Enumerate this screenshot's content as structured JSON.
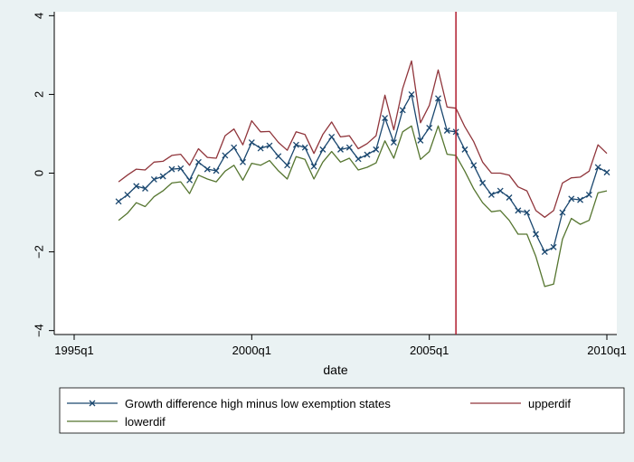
{
  "chart_data": {
    "type": "line",
    "xlabel": "date",
    "ylabel": "",
    "x_tick_labels": [
      "1995q1",
      "2000q1",
      "2005q1",
      "2010q1"
    ],
    "x_ticks": [
      "1995q1",
      "2000q1",
      "2005q1",
      "2010q1"
    ],
    "y_ticks": [
      -4,
      -2,
      0,
      2,
      4
    ],
    "y_tick_labels": [
      "−4",
      "−2",
      "0",
      "2",
      "4"
    ],
    "xlim": [
      "1995q1",
      "2010q1"
    ],
    "ylim": [
      -4.1,
      4.1
    ],
    "grid": false,
    "legend_position": "bottom",
    "vertical_line": {
      "x": "2005q4",
      "color": "#b01c2e"
    },
    "series": [
      {
        "name": "Growth difference high minus low exemption states",
        "color": "#1a476f",
        "marker": "x",
        "x": [
          "1996q2",
          "1996q3",
          "1996q4",
          "1997q1",
          "1997q2",
          "1997q3",
          "1997q4",
          "1998q1",
          "1998q2",
          "1998q3",
          "1998q4",
          "1999q1",
          "1999q2",
          "1999q3",
          "1999q4",
          "2000q1",
          "2000q2",
          "2000q3",
          "2000q4",
          "2001q1",
          "2001q2",
          "2001q3",
          "2001q4",
          "2002q1",
          "2002q2",
          "2002q3",
          "2002q4",
          "2003q1",
          "2003q2",
          "2003q3",
          "2003q4",
          "2004q1",
          "2004q2",
          "2004q3",
          "2004q4",
          "2005q1",
          "2005q2",
          "2005q3",
          "2005q4",
          "2006q1",
          "2006q2",
          "2006q3",
          "2006q4",
          "2007q1",
          "2007q2",
          "2007q3",
          "2007q4",
          "2008q1",
          "2008q2",
          "2008q3",
          "2008q4",
          "2009q1",
          "2009q2",
          "2009q3",
          "2009q4",
          "2010q1"
        ],
        "values": [
          -0.72,
          -0.55,
          -0.33,
          -0.39,
          -0.16,
          -0.08,
          0.1,
          0.12,
          -0.18,
          0.28,
          0.1,
          0.06,
          0.45,
          0.65,
          0.28,
          0.78,
          0.63,
          0.7,
          0.43,
          0.2,
          0.72,
          0.65,
          0.17,
          0.6,
          0.92,
          0.6,
          0.65,
          0.36,
          0.47,
          0.6,
          1.4,
          0.78,
          1.6,
          2.0,
          0.83,
          1.15,
          1.9,
          1.08,
          1.05,
          0.6,
          0.2,
          -0.25,
          -0.55,
          -0.45,
          -0.62,
          -0.95,
          -1.0,
          -1.55,
          -2.0,
          -1.88,
          -1.0,
          -0.65,
          -0.68,
          -0.55,
          0.15,
          0.02
        ]
      },
      {
        "name": "upperdif",
        "color": "#90353b",
        "marker": "none",
        "x": [
          "1996q2",
          "1996q3",
          "1996q4",
          "1997q1",
          "1997q2",
          "1997q3",
          "1997q4",
          "1998q1",
          "1998q2",
          "1998q3",
          "1998q4",
          "1999q1",
          "1999q2",
          "1999q3",
          "1999q4",
          "2000q1",
          "2000q2",
          "2000q3",
          "2000q4",
          "2001q1",
          "2001q2",
          "2001q3",
          "2001q4",
          "2002q1",
          "2002q2",
          "2002q3",
          "2002q4",
          "2003q1",
          "2003q2",
          "2003q3",
          "2003q4",
          "2004q1",
          "2004q2",
          "2004q3",
          "2004q4",
          "2005q1",
          "2005q2",
          "2005q3",
          "2005q4",
          "2006q1",
          "2006q2",
          "2006q3",
          "2006q4",
          "2007q1",
          "2007q2",
          "2007q3",
          "2007q4",
          "2008q1",
          "2008q2",
          "2008q3",
          "2008q4",
          "2009q1",
          "2009q2",
          "2009q3",
          "2009q4",
          "2010q1"
        ],
        "values": [
          -0.22,
          -0.05,
          0.1,
          0.08,
          0.28,
          0.3,
          0.45,
          0.48,
          0.2,
          0.62,
          0.4,
          0.38,
          0.95,
          1.12,
          0.72,
          1.33,
          1.05,
          1.06,
          0.78,
          0.58,
          1.05,
          0.98,
          0.5,
          0.98,
          1.3,
          0.92,
          0.95,
          0.62,
          0.75,
          0.95,
          1.98,
          1.1,
          2.15,
          2.85,
          1.28,
          1.72,
          2.62,
          1.68,
          1.65,
          1.18,
          0.8,
          0.28,
          0.0,
          0.0,
          -0.05,
          -0.35,
          -0.45,
          -0.95,
          -1.12,
          -0.95,
          -0.25,
          -0.12,
          -0.1,
          0.05,
          0.72,
          0.5
        ]
      },
      {
        "name": "lowerdif",
        "color": "#55752f",
        "marker": "none",
        "x": [
          "1996q2",
          "1996q3",
          "1996q4",
          "1997q1",
          "1997q2",
          "1997q3",
          "1997q4",
          "1998q1",
          "1998q2",
          "1998q3",
          "1998q4",
          "1999q1",
          "1999q2",
          "1999q3",
          "1999q4",
          "2000q1",
          "2000q2",
          "2000q3",
          "2000q4",
          "2001q1",
          "2001q2",
          "2001q3",
          "2001q4",
          "2002q1",
          "2002q2",
          "2002q3",
          "2002q4",
          "2003q1",
          "2003q2",
          "2003q3",
          "2003q4",
          "2004q1",
          "2004q2",
          "2004q3",
          "2004q4",
          "2005q1",
          "2005q2",
          "2005q3",
          "2005q4",
          "2006q1",
          "2006q2",
          "2006q3",
          "2006q4",
          "2007q1",
          "2007q2",
          "2007q3",
          "2007q4",
          "2008q1",
          "2008q2",
          "2008q3",
          "2008q4",
          "2009q1",
          "2009q2",
          "2009q3",
          "2009q4",
          "2010q1"
        ],
        "values": [
          -1.2,
          -1.02,
          -0.75,
          -0.85,
          -0.6,
          -0.45,
          -0.25,
          -0.22,
          -0.52,
          -0.05,
          -0.15,
          -0.22,
          0.05,
          0.2,
          -0.18,
          0.25,
          0.2,
          0.32,
          0.06,
          -0.15,
          0.42,
          0.35,
          -0.15,
          0.28,
          0.55,
          0.28,
          0.38,
          0.08,
          0.15,
          0.26,
          0.82,
          0.38,
          1.05,
          1.2,
          0.35,
          0.55,
          1.2,
          0.48,
          0.45,
          0.05,
          -0.4,
          -0.75,
          -0.98,
          -0.95,
          -1.2,
          -1.55,
          -1.55,
          -2.12,
          -2.88,
          -2.82,
          -1.68,
          -1.15,
          -1.3,
          -1.2,
          -0.5,
          -0.45
        ]
      }
    ]
  }
}
